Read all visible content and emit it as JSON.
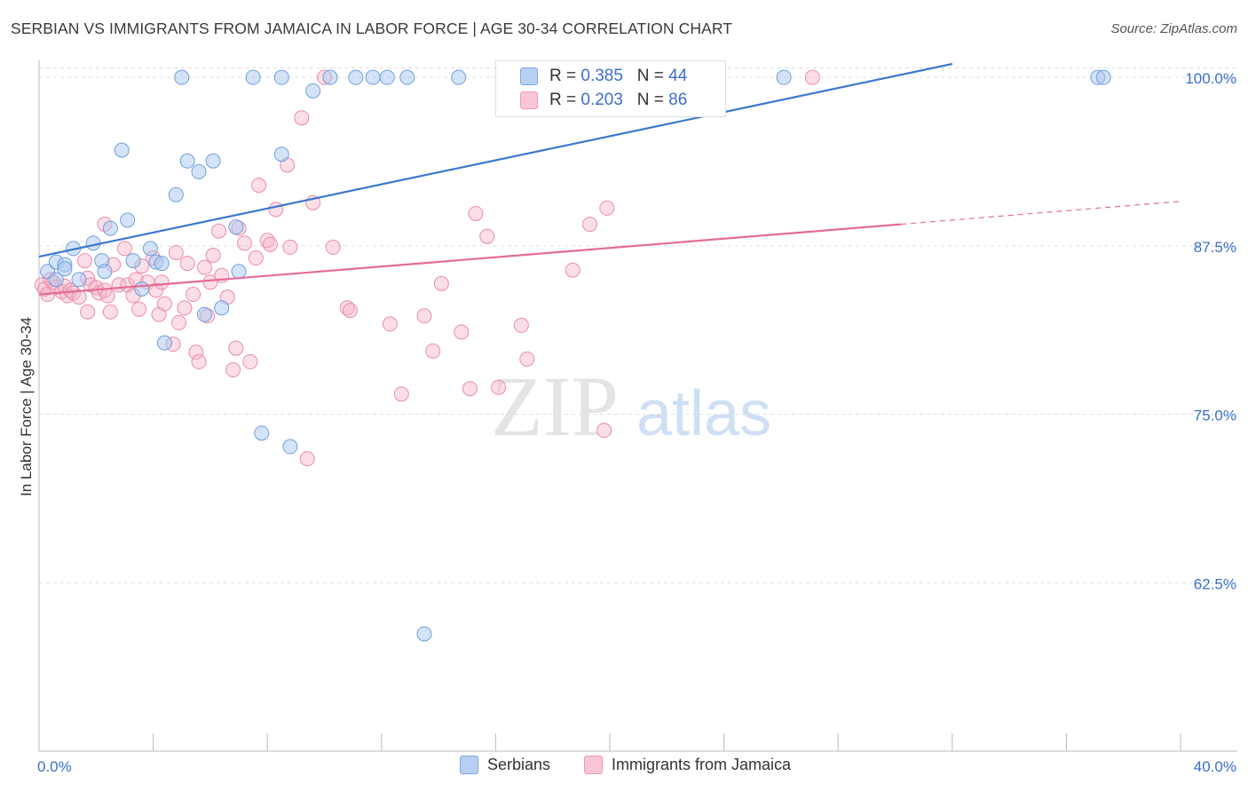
{
  "title": "SERBIAN VS IMMIGRANTS FROM JAMAICA IN LABOR FORCE | AGE 30-34 CORRELATION CHART",
  "source": "Source: ZipAtlas.com",
  "watermark": {
    "zip": "ZIP",
    "atlas": "atlas"
  },
  "legend_top": {
    "rows": [
      {
        "r_label": "R = ",
        "r_value": "0.385",
        "n_label": "N = ",
        "n_value": "44"
      },
      {
        "r_label": "R = ",
        "r_value": "0.203",
        "n_label": "N = ",
        "n_value": "86"
      }
    ]
  },
  "colors": {
    "serbians_fill": "#a9c8f0",
    "serbians_stroke": "#6f9fdc",
    "serbians_line": "#3a78d0",
    "jamaica_fill": "#f7b6cb",
    "jamaica_stroke": "#ea8caa",
    "jamaica_line": "#e46b98",
    "axis_label": "#3b6fc8",
    "grid": "#dddddd"
  },
  "chart_data": {
    "type": "scatter",
    "title": "SERBIAN VS IMMIGRANTS FROM JAMAICA IN LABOR FORCE | AGE 30-34 CORRELATION CHART",
    "xlabel": "",
    "ylabel": "In Labor Force | Age 30-34",
    "xlim": [
      0,
      40
    ],
    "ylim": [
      50,
      101
    ],
    "x_tick_labels": [
      "0.0%",
      "40.0%"
    ],
    "y_ticks": [
      62.5,
      75.0,
      87.5,
      100.0
    ],
    "y_tick_labels": [
      "62.5%",
      "75.0%",
      "87.5%",
      "100.0%"
    ],
    "legend_position": "bottom",
    "series": [
      {
        "name": "Serbians",
        "r": 0.385,
        "n": 44,
        "trend": {
          "x": [
            0,
            32
          ],
          "y": [
            86.7,
            101
          ]
        },
        "points": [
          [
            0.3,
            85.6
          ],
          [
            0.6,
            85.0
          ],
          [
            0.6,
            86.3
          ],
          [
            0.9,
            86.1
          ],
          [
            0.9,
            85.8
          ],
          [
            1.2,
            87.3
          ],
          [
            1.4,
            85.0
          ],
          [
            1.9,
            87.7
          ],
          [
            2.2,
            86.4
          ],
          [
            2.3,
            85.6
          ],
          [
            2.5,
            88.8
          ],
          [
            2.9,
            94.6
          ],
          [
            3.1,
            89.4
          ],
          [
            3.3,
            86.4
          ],
          [
            3.6,
            84.3
          ],
          [
            3.9,
            87.3
          ],
          [
            4.1,
            86.3
          ],
          [
            4.3,
            86.2
          ],
          [
            4.4,
            80.3
          ],
          [
            4.8,
            91.3
          ],
          [
            5.0,
            100.0
          ],
          [
            5.2,
            93.8
          ],
          [
            5.6,
            93.0
          ],
          [
            5.8,
            82.4
          ],
          [
            6.1,
            93.8
          ],
          [
            6.4,
            82.9
          ],
          [
            6.9,
            88.9
          ],
          [
            7.0,
            85.6
          ],
          [
            7.8,
            73.6
          ],
          [
            7.5,
            100.0
          ],
          [
            8.5,
            100.0
          ],
          [
            8.5,
            94.3
          ],
          [
            8.8,
            72.6
          ],
          [
            9.6,
            99.0
          ],
          [
            10.2,
            100.0
          ],
          [
            11.1,
            100.0
          ],
          [
            11.7,
            100.0
          ],
          [
            12.2,
            100.0
          ],
          [
            12.9,
            100.0
          ],
          [
            13.5,
            58.7
          ],
          [
            14.7,
            100.0
          ],
          [
            26.1,
            100.0
          ],
          [
            37.1,
            100.0
          ],
          [
            37.3,
            100.0
          ]
        ]
      },
      {
        "name": "Immigrants from Jamaica",
        "r": 0.203,
        "n": 86,
        "trend": {
          "x": [
            0,
            30.2
          ],
          "y": [
            83.9,
            89.1
          ]
        },
        "trend_dashed": {
          "x": [
            30.2,
            40
          ],
          "y": [
            89.1,
            90.8
          ]
        },
        "points": [
          [
            0.1,
            84.6
          ],
          [
            0.2,
            84.3
          ],
          [
            0.3,
            83.9
          ],
          [
            0.4,
            85.0
          ],
          [
            0.5,
            84.8
          ],
          [
            0.6,
            84.4
          ],
          [
            0.8,
            84.1
          ],
          [
            0.9,
            84.5
          ],
          [
            1.0,
            83.8
          ],
          [
            1.1,
            84.2
          ],
          [
            1.2,
            84.0
          ],
          [
            1.4,
            83.7
          ],
          [
            1.6,
            86.4
          ],
          [
            1.7,
            85.1
          ],
          [
            1.7,
            82.6
          ],
          [
            1.8,
            84.6
          ],
          [
            2.0,
            84.4
          ],
          [
            2.1,
            84.0
          ],
          [
            2.3,
            84.2
          ],
          [
            2.4,
            83.8
          ],
          [
            2.3,
            89.1
          ],
          [
            2.5,
            82.6
          ],
          [
            2.6,
            86.1
          ],
          [
            2.8,
            84.6
          ],
          [
            3.0,
            87.3
          ],
          [
            3.1,
            84.6
          ],
          [
            3.3,
            83.8
          ],
          [
            3.4,
            85.0
          ],
          [
            3.5,
            82.8
          ],
          [
            3.6,
            86.0
          ],
          [
            3.8,
            84.8
          ],
          [
            4.0,
            86.6
          ],
          [
            4.1,
            84.2
          ],
          [
            4.3,
            84.8
          ],
          [
            4.2,
            82.4
          ],
          [
            4.4,
            83.2
          ],
          [
            4.7,
            80.2
          ],
          [
            4.8,
            87.0
          ],
          [
            4.9,
            81.8
          ],
          [
            5.1,
            82.9
          ],
          [
            5.2,
            86.2
          ],
          [
            5.4,
            83.9
          ],
          [
            5.5,
            79.6
          ],
          [
            5.6,
            78.9
          ],
          [
            5.8,
            85.9
          ],
          [
            6.0,
            84.8
          ],
          [
            5.9,
            82.3
          ],
          [
            6.1,
            86.8
          ],
          [
            6.3,
            88.6
          ],
          [
            6.4,
            85.3
          ],
          [
            6.6,
            83.7
          ],
          [
            6.8,
            78.3
          ],
          [
            6.9,
            79.9
          ],
          [
            7.0,
            88.8
          ],
          [
            7.2,
            87.7
          ],
          [
            7.4,
            78.9
          ],
          [
            7.6,
            86.6
          ],
          [
            7.7,
            92.0
          ],
          [
            8.0,
            87.9
          ],
          [
            8.1,
            87.6
          ],
          [
            8.3,
            90.2
          ],
          [
            8.7,
            93.5
          ],
          [
            8.8,
            87.4
          ],
          [
            9.2,
            97.0
          ],
          [
            9.4,
            71.7
          ],
          [
            9.6,
            90.7
          ],
          [
            10.0,
            100.0
          ],
          [
            10.3,
            87.4
          ],
          [
            10.8,
            82.9
          ],
          [
            10.9,
            82.7
          ],
          [
            12.3,
            81.7
          ],
          [
            12.7,
            76.5
          ],
          [
            13.5,
            82.3
          ],
          [
            13.8,
            79.7
          ],
          [
            14.1,
            84.7
          ],
          [
            14.8,
            81.1
          ],
          [
            15.1,
            76.9
          ],
          [
            15.3,
            89.9
          ],
          [
            15.7,
            88.2
          ],
          [
            16.1,
            77.0
          ],
          [
            16.9,
            81.6
          ],
          [
            17.1,
            79.1
          ],
          [
            18.7,
            85.7
          ],
          [
            19.3,
            89.1
          ],
          [
            19.8,
            73.8
          ],
          [
            19.9,
            90.3
          ],
          [
            27.1,
            100.0
          ]
        ]
      }
    ]
  }
}
